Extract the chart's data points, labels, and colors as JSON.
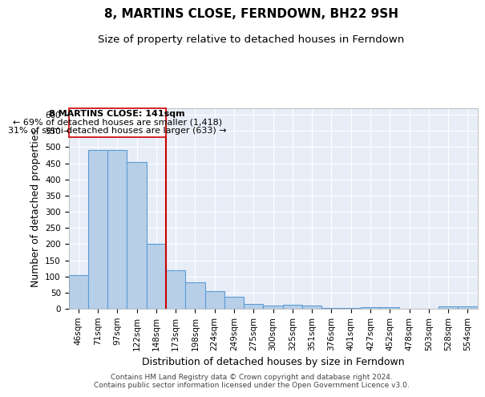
{
  "title": "8, MARTINS CLOSE, FERNDOWN, BH22 9SH",
  "subtitle": "Size of property relative to detached houses in Ferndown",
  "xlabel": "Distribution of detached houses by size in Ferndown",
  "ylabel": "Number of detached properties",
  "categories": [
    "46sqm",
    "71sqm",
    "97sqm",
    "122sqm",
    "148sqm",
    "173sqm",
    "198sqm",
    "224sqm",
    "249sqm",
    "275sqm",
    "300sqm",
    "325sqm",
    "351sqm",
    "376sqm",
    "401sqm",
    "427sqm",
    "452sqm",
    "478sqm",
    "503sqm",
    "528sqm",
    "554sqm"
  ],
  "values": [
    105,
    490,
    490,
    455,
    200,
    120,
    83,
    55,
    38,
    15,
    10,
    12,
    10,
    3,
    3,
    5,
    5,
    0,
    0,
    7,
    7
  ],
  "bar_color": "#b8cfe8",
  "bar_edge_color": "#5b9bd5",
  "bar_linewidth": 0.8,
  "vline_x": 4.5,
  "vline_color": "#cc0000",
  "vline_linewidth": 1.5,
  "annotation_line1": "8 MARTINS CLOSE: 141sqm",
  "annotation_line2": "← 69% of detached houses are smaller (1,418)",
  "annotation_line3": "31% of semi-detached houses are larger (633) →",
  "annotation_box_color": "#ffffff",
  "annotation_box_edge_color": "#cc0000",
  "footer_text": "Contains HM Land Registry data © Crown copyright and database right 2024.\nContains public sector information licensed under the Open Government Licence v3.0.",
  "ylim": [
    0,
    620
  ],
  "yticks": [
    0,
    50,
    100,
    150,
    200,
    250,
    300,
    350,
    400,
    450,
    500,
    550,
    600
  ],
  "background_color": "#e8eef8",
  "grid_color": "#ffffff",
  "title_fontsize": 11,
  "subtitle_fontsize": 9.5,
  "axis_label_fontsize": 9,
  "tick_fontsize": 7.5,
  "annotation_fontsize": 8,
  "footer_fontsize": 6.5
}
